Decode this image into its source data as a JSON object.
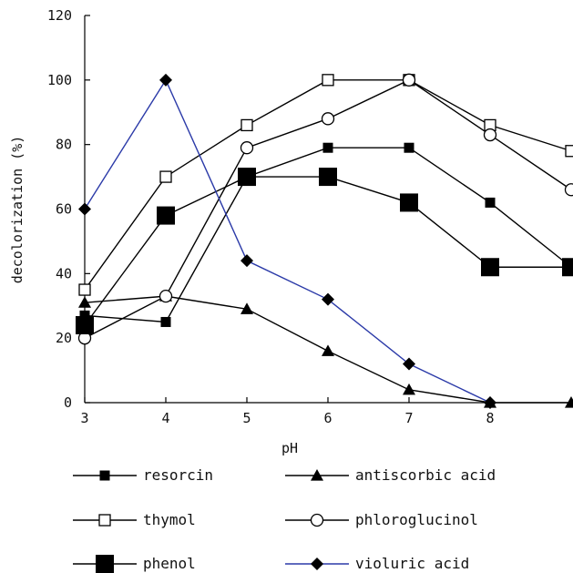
{
  "chart_data": {
    "type": "line",
    "title": "",
    "xlabel": "pH",
    "ylabel": "decolorization (%)",
    "xlim": [
      3,
      9
    ],
    "ylim": [
      0,
      120
    ],
    "x_ticks": [
      3,
      4,
      5,
      6,
      7,
      8
    ],
    "y_ticks": [
      0,
      20,
      40,
      60,
      80,
      100,
      120
    ],
    "grid": false,
    "legend_position": "bottom",
    "series": [
      {
        "name": "resorcin",
        "marker": "filled-square-small",
        "color": "#000000",
        "x": [
          3,
          4,
          5,
          6,
          7,
          8,
          9
        ],
        "y": [
          27,
          25,
          70,
          79,
          79,
          62,
          42
        ]
      },
      {
        "name": "antiscorbic acid",
        "marker": "filled-triangle",
        "color": "#000000",
        "x": [
          3,
          4,
          5,
          6,
          7,
          8,
          9
        ],
        "y": [
          31,
          33,
          29,
          16,
          4,
          0,
          0
        ]
      },
      {
        "name": "thymol",
        "marker": "open-square",
        "color": "#000000",
        "x": [
          3,
          4,
          5,
          6,
          7,
          8,
          9
        ],
        "y": [
          35,
          70,
          86,
          100,
          100,
          86,
          78
        ]
      },
      {
        "name": "phloroglucinol",
        "marker": "open-circle",
        "color": "#000000",
        "x": [
          3,
          4,
          5,
          6,
          7,
          8,
          9
        ],
        "y": [
          20,
          33,
          79,
          88,
          100,
          83,
          66
        ]
      },
      {
        "name": "phenol",
        "marker": "filled-square-large",
        "color": "#000000",
        "x": [
          3,
          4,
          5,
          6,
          7,
          8,
          9
        ],
        "y": [
          24,
          58,
          70,
          70,
          62,
          42,
          42
        ]
      },
      {
        "name": "violuric acid",
        "marker": "filled-diamond",
        "color": "#2b3aa8",
        "x": [
          3,
          4,
          5,
          6,
          7,
          8
        ],
        "y": [
          60,
          100,
          44,
          32,
          12,
          0
        ]
      }
    ]
  }
}
